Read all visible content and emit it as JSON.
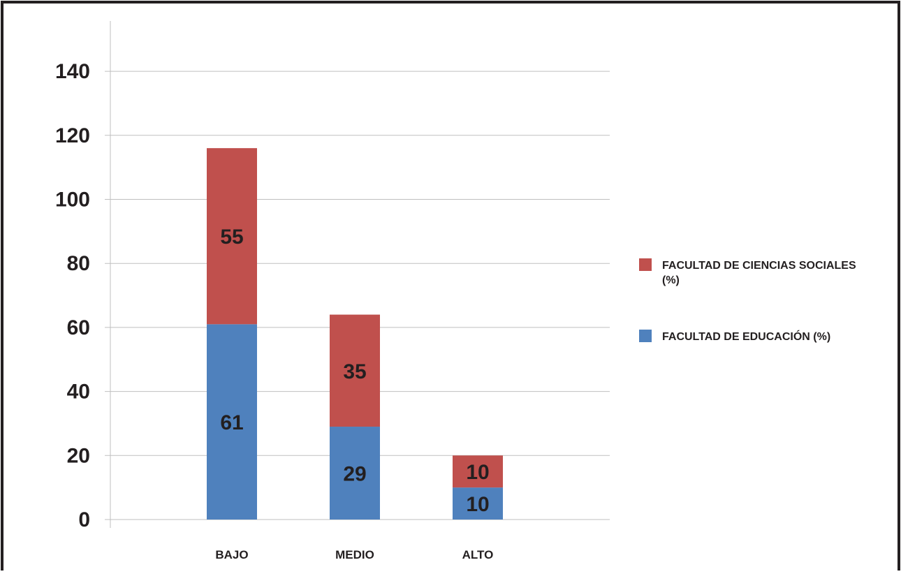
{
  "chart_data": {
    "type": "bar",
    "stacked": true,
    "categories": [
      "BAJO",
      "MEDIO",
      "ALTO"
    ],
    "series": [
      {
        "name": "FACULTAD DE EDUCACIÓN (%)",
        "values": [
          61,
          29,
          10
        ],
        "color": "#4f81bd"
      },
      {
        "name": "FACULTAD DE CIENCIAS SOCIALES (%)",
        "values": [
          55,
          35,
          10
        ],
        "color": "#c0504d"
      }
    ],
    "y_ticks": [
      "0",
      "20",
      "40",
      "60",
      "80",
      "100",
      "120",
      "140"
    ],
    "ylim": [
      0,
      160
    ],
    "grid": true,
    "legend_position": "right",
    "title": "",
    "xlabel": "",
    "ylabel": ""
  },
  "legend": [
    {
      "label": "FACULTAD DE CIENCIAS SOCIALES (%)",
      "color": "#c0504d"
    },
    {
      "label": "FACULTAD DE EDUCACIÓN (%)",
      "color": "#4f81bd"
    }
  ],
  "colors": {
    "frame": "#231f20",
    "grid": "#bfbfbf",
    "text": "#231f20",
    "axis": "#bfbfbf"
  }
}
